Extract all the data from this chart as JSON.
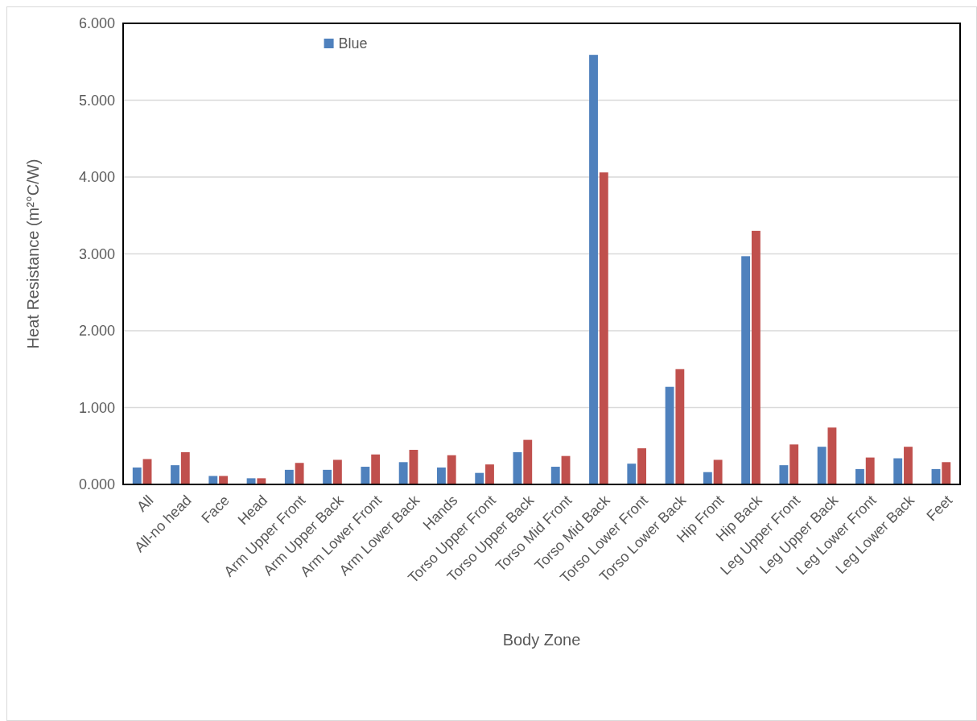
{
  "chart_data": {
    "type": "bar",
    "xlabel": "Body Zone",
    "ylabel": "Heat Resistance (m²°C/W)",
    "categories": [
      "All",
      "All-no head",
      "Face",
      "Head",
      "Arm Upper Front",
      "Arm Upper Back",
      "Arm Lower Front",
      "Arm Lower Back",
      "Hands",
      "Torso Upper Front",
      "Torso Upper Back",
      "Torso Mid Front",
      "Torso Mid Back",
      "Torso Lower Front",
      "Torso Lower Back",
      "Hip Front",
      "Hip Back",
      "Leg Upper Front",
      "Leg Upper Back",
      "Leg Lower Front",
      "Leg Lower Back",
      "Feet"
    ],
    "series": [
      {
        "name": "Blue",
        "color": "#4f81bd",
        "values": [
          0.22,
          0.25,
          0.11,
          0.08,
          0.19,
          0.19,
          0.23,
          0.29,
          0.22,
          0.15,
          0.42,
          0.23,
          5.59,
          0.27,
          1.27,
          0.16,
          2.97,
          0.25,
          0.49,
          0.2,
          0.34,
          0.2
        ]
      },
      {
        "color": "#c0504d",
        "values": [
          0.33,
          0.42,
          0.11,
          0.08,
          0.28,
          0.32,
          0.39,
          0.45,
          0.38,
          0.26,
          0.58,
          0.37,
          4.06,
          0.47,
          1.5,
          0.32,
          3.3,
          0.52,
          0.74,
          0.35,
          0.49,
          0.29
        ]
      }
    ],
    "ylim": [
      0,
      6
    ],
    "yticks": [
      {
        "value": 0,
        "label": "0.000"
      },
      {
        "value": 1,
        "label": "1.000"
      },
      {
        "value": 2,
        "label": "2.000"
      },
      {
        "value": 3,
        "label": "3.000"
      },
      {
        "value": 4,
        "label": "4.000"
      },
      {
        "value": 5,
        "label": "5.000"
      },
      {
        "value": 6,
        "label": "6.000"
      }
    ],
    "grid": "y",
    "legend": "top"
  }
}
